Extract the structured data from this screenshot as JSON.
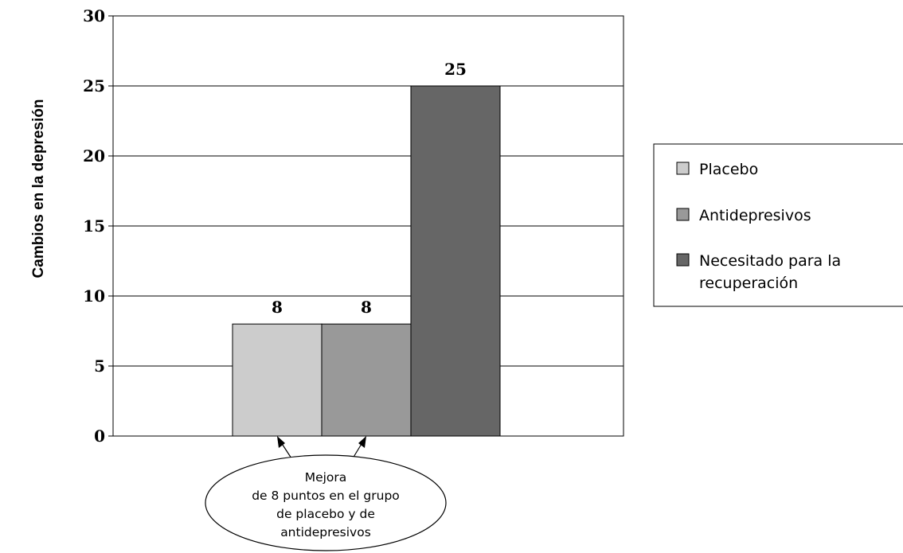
{
  "chart_data": {
    "type": "bar",
    "title": "",
    "xlabel": "",
    "ylabel": "Cambios en la depresión",
    "ylim": [
      0,
      30
    ],
    "yticks": [
      0,
      5,
      10,
      15,
      20,
      25,
      30
    ],
    "grid": true,
    "legend_position": "right",
    "series": [
      {
        "name": "Placebo",
        "value": 8,
        "label": "8",
        "color": "#cccccc"
      },
      {
        "name": "Antidepresivos",
        "value": 8,
        "label": "8",
        "color": "#999999"
      },
      {
        "name": "Necesitado para la recuperación",
        "value": 25,
        "label": "25",
        "color": "#666666"
      }
    ],
    "legend": {
      "items": [
        {
          "lines": [
            "Placebo"
          ]
        },
        {
          "lines": [
            "Antidepresivos"
          ]
        },
        {
          "lines": [
            "Necesitado para la",
            "recuperación"
          ]
        }
      ]
    },
    "annotation": {
      "lines": [
        "Mejora",
        "de 8 puntos en el grupo",
        "de placebo y de",
        "antidepresivos"
      ]
    }
  }
}
